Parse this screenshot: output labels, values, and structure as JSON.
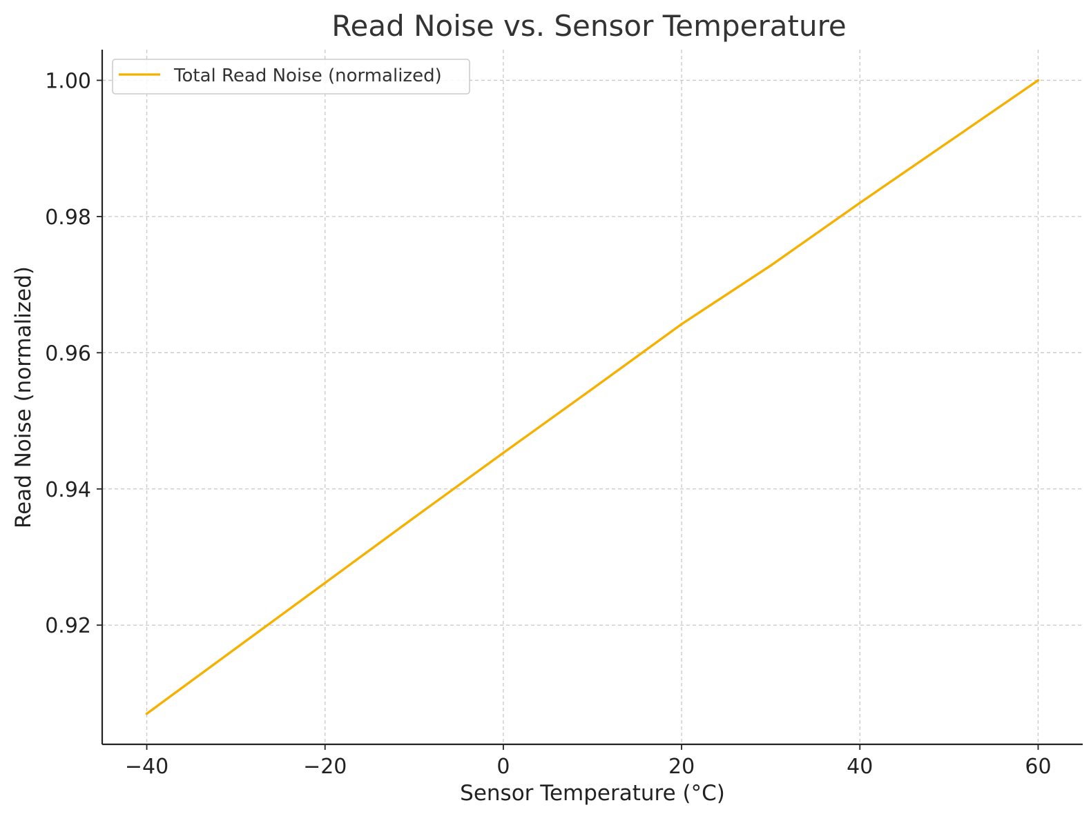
{
  "chart_data": {
    "type": "line",
    "title": "Read Noise vs. Sensor Temperature",
    "xlabel": "Sensor Temperature (°C)",
    "ylabel": "Read Noise (normalized)",
    "xlim": [
      -45,
      65
    ],
    "ylim": [
      0.9025,
      1.0045
    ],
    "xticks": [
      -40,
      -20,
      0,
      20,
      40,
      60
    ],
    "xtick_labels": [
      "−40",
      "−20",
      "0",
      "20",
      "40",
      "60"
    ],
    "yticks": [
      0.92,
      0.94,
      0.96,
      0.98,
      1.0
    ],
    "ytick_labels": [
      "0.92",
      "0.94",
      "0.96",
      "0.98",
      "1.00"
    ],
    "grid": true,
    "legend_position": "top-left",
    "series": [
      {
        "name": "Total Read Noise (normalized)",
        "color": "#f5b000",
        "x": [
          -40,
          -30,
          -20,
          -10,
          0,
          10,
          20,
          30,
          40,
          50,
          60
        ],
        "y": [
          0.907,
          0.9166,
          0.9262,
          0.9358,
          0.9453,
          0.9547,
          0.9642,
          0.9728,
          0.982,
          0.991,
          1.0
        ]
      }
    ]
  }
}
